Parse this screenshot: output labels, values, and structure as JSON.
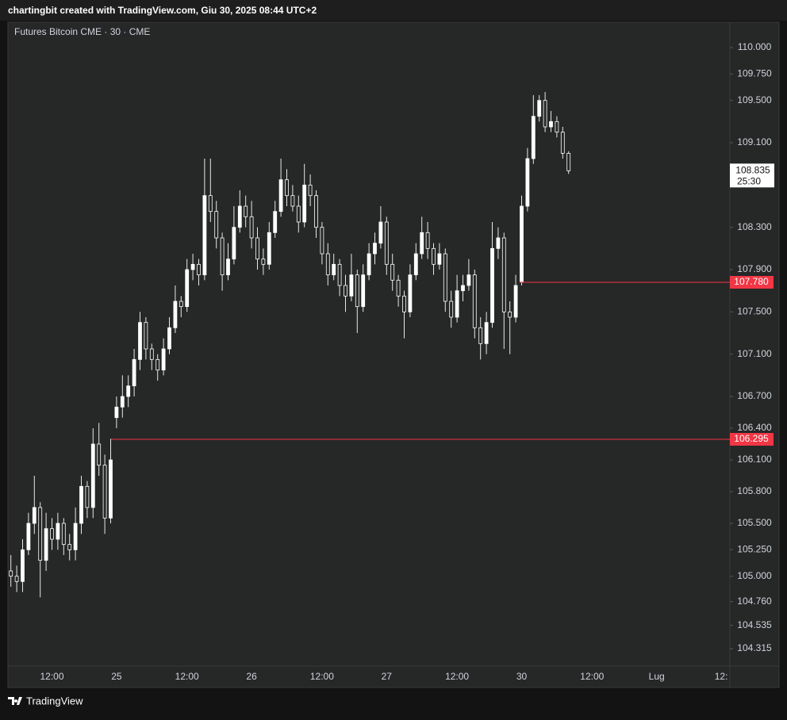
{
  "header": "chartingbit created with TradingView.com, Giu 30, 2025 08:44 UTC+2",
  "footer": "TradingView",
  "chart_data": {
    "type": "candlestick",
    "title": "Futures Bitcoin CME · 30 · CME",
    "up_color": "#ffffff",
    "down_color": "#262727",
    "wick_color": "#e8e8e8",
    "categories": [
      null,
      null,
      null,
      null,
      null,
      null,
      null,
      "12:00",
      null,
      null,
      null,
      null,
      null,
      null,
      null,
      null,
      null,
      null,
      "25",
      null,
      null,
      null,
      null,
      null,
      null,
      null,
      null,
      null,
      null,
      null,
      "12:00",
      null,
      null,
      null,
      null,
      null,
      null,
      null,
      null,
      null,
      null,
      "26",
      null,
      null,
      null,
      null,
      null,
      null,
      null,
      null,
      null,
      null,
      null,
      "12:00",
      null,
      null,
      null,
      null,
      null,
      null,
      null,
      null,
      null,
      null,
      "27",
      null,
      null,
      null,
      null,
      null,
      null,
      null,
      null,
      null,
      null,
      null,
      "12:00",
      null,
      null,
      null,
      null,
      null,
      null,
      null,
      null,
      null,
      null,
      "30",
      null,
      null,
      null,
      null,
      null,
      null,
      null,
      null,
      null,
      null,
      null,
      "12:00",
      null,
      null,
      null,
      null,
      null,
      null,
      null,
      null,
      null,
      null,
      "Lug",
      null,
      null,
      null,
      null,
      null,
      null,
      null,
      null,
      null,
      null,
      "12:"
    ],
    "open": [
      105050,
      105000,
      104950,
      105250,
      105500,
      105650,
      105150,
      105450,
      105350,
      105500,
      105300,
      105250,
      105500,
      105850,
      105650,
      106250,
      106050,
      105550,
      106500,
      106600,
      106700,
      106800,
      107050,
      107400,
      107150,
      107050,
      106950,
      107150,
      107350,
      107600,
      107550,
      107900,
      107950,
      107850,
      108600,
      108450,
      108200,
      107850,
      108000,
      108300,
      108500,
      108400,
      108200,
      108000,
      107950,
      108250,
      108450,
      108750,
      108600,
      108500,
      108350,
      108700,
      108600,
      108300,
      108050,
      107850,
      107950,
      107750,
      107650,
      107850,
      107550,
      107850,
      108050,
      108150,
      108350,
      107950,
      107800,
      107650,
      107500,
      107850,
      108050,
      108250,
      108100,
      107950,
      108050,
      107600,
      107450,
      107700,
      107750,
      107850,
      107350,
      107200,
      107400,
      108100,
      108200,
      107500,
      107450,
      107780,
      108500,
      108950,
      109350,
      109500,
      109250,
      109300,
      109200,
      109000,
      null,
      null,
      null,
      null,
      null,
      null,
      null,
      null,
      null,
      null,
      null,
      null,
      null,
      null,
      null,
      null,
      null,
      null,
      null,
      null,
      null,
      null,
      null,
      null,
      null,
      null
    ],
    "high": [
      105200,
      105100,
      105350,
      105600,
      105950,
      105700,
      105600,
      105550,
      105600,
      105550,
      105400,
      105650,
      105950,
      105900,
      106400,
      106450,
      106150,
      106300,
      106700,
      106900,
      106900,
      107150,
      107500,
      107450,
      107200,
      107100,
      107250,
      107450,
      107750,
      107650,
      108000,
      108050,
      108000,
      108950,
      108950,
      108550,
      108250,
      108150,
      108500,
      108650,
      108600,
      108550,
      108300,
      108100,
      108350,
      108550,
      108950,
      108850,
      108700,
      108600,
      108900,
      108800,
      108650,
      108350,
      108150,
      108050,
      108000,
      107850,
      108050,
      107900,
      107950,
      108150,
      108250,
      108500,
      108400,
      108050,
      107850,
      107700,
      107950,
      108150,
      108400,
      108350,
      108150,
      108150,
      108100,
      107700,
      107850,
      107850,
      108000,
      107900,
      107450,
      107500,
      108350,
      108300,
      108250,
      107600,
      107850,
      108600,
      109050,
      109550,
      109550,
      109580,
      109400,
      109350,
      109250,
      109020,
      null,
      null,
      null,
      null,
      null,
      null,
      null,
      null,
      null,
      null,
      null,
      null,
      null,
      null,
      null,
      null,
      null,
      null,
      null,
      null,
      null,
      null,
      null,
      null,
      null,
      null
    ],
    "low": [
      104900,
      104850,
      104850,
      105200,
      105400,
      104800,
      105050,
      105250,
      105250,
      105200,
      105150,
      105150,
      105400,
      105550,
      105550,
      105950,
      105400,
      105500,
      106400,
      106500,
      106600,
      106700,
      106950,
      107050,
      106950,
      106850,
      106900,
      107100,
      107300,
      107450,
      107500,
      107800,
      107750,
      107800,
      108350,
      108100,
      107700,
      107800,
      107950,
      108250,
      108300,
      108100,
      107900,
      107850,
      107900,
      108200,
      108400,
      108500,
      108450,
      108250,
      108300,
      108500,
      108200,
      107950,
      107750,
      107800,
      107650,
      107500,
      107600,
      107300,
      107500,
      107800,
      107950,
      108100,
      107850,
      107700,
      107550,
      107250,
      107450,
      107800,
      108000,
      108000,
      107850,
      107900,
      107500,
      107350,
      107400,
      107600,
      107700,
      107250,
      107050,
      107100,
      107350,
      108000,
      107150,
      107100,
      107400,
      107750,
      108450,
      108900,
      109300,
      109200,
      109200,
      109150,
      108950,
      108805,
      null,
      null,
      null,
      null,
      null,
      null,
      null,
      null,
      null,
      null,
      null,
      null,
      null,
      null,
      null,
      null,
      null,
      null,
      null,
      null,
      null,
      null,
      null,
      null,
      null,
      null
    ],
    "close": [
      105000,
      104950,
      105250,
      105500,
      105650,
      105150,
      105450,
      105350,
      105500,
      105300,
      105250,
      105500,
      105850,
      105650,
      106250,
      106050,
      105550,
      106100,
      106600,
      106700,
      106800,
      107050,
      107400,
      107150,
      107050,
      106950,
      107150,
      107350,
      107600,
      107550,
      107900,
      107950,
      107850,
      108600,
      108450,
      108200,
      107850,
      108000,
      108300,
      108500,
      108400,
      108200,
      108000,
      107950,
      108250,
      108450,
      108750,
      108600,
      108500,
      108350,
      108700,
      108600,
      108300,
      108050,
      107850,
      107950,
      107750,
      107650,
      107850,
      107550,
      107850,
      108050,
      108150,
      108350,
      107950,
      107800,
      107650,
      107500,
      107850,
      108050,
      108250,
      108100,
      107950,
      108050,
      107600,
      107450,
      107700,
      107750,
      107850,
      107350,
      107200,
      107400,
      108100,
      108200,
      107500,
      107450,
      107750,
      108500,
      108950,
      109350,
      109500,
      109250,
      109300,
      109200,
      109000,
      108835,
      null,
      null,
      null,
      null,
      null,
      null,
      null,
      null,
      null,
      null,
      null,
      null,
      null,
      null,
      null,
      null,
      null,
      null,
      null,
      null,
      null,
      null,
      null,
      null,
      null,
      null
    ],
    "ylim": [
      104150,
      110240
    ],
    "yticks": [
      {
        "value": 110000,
        "label": "110.000"
      },
      {
        "value": 109750,
        "label": "109.750"
      },
      {
        "value": 109500,
        "label": "109.500"
      },
      {
        "value": 109100,
        "label": "109.100"
      },
      {
        "value": 108300,
        "label": "108.300"
      },
      {
        "value": 107900,
        "label": "107.900"
      },
      {
        "value": 107500,
        "label": "107.500"
      },
      {
        "value": 107100,
        "label": "107.100"
      },
      {
        "value": 106700,
        "label": "106.700"
      },
      {
        "value": 106400,
        "label": "106.400"
      },
      {
        "value": 106100,
        "label": "106.100"
      },
      {
        "value": 105800,
        "label": "105.800"
      },
      {
        "value": 105500,
        "label": "105.500"
      },
      {
        "value": 105250,
        "label": "105.250"
      },
      {
        "value": 105000,
        "label": "105.000"
      },
      {
        "value": 104760,
        "label": "104.760"
      },
      {
        "value": 104535,
        "label": "104.535"
      },
      {
        "value": 104315,
        "label": "104.315"
      }
    ],
    "price_lines": [
      {
        "value": 107780,
        "label": "107.780",
        "color": "#f23645"
      },
      {
        "value": 106295,
        "label": "106.295",
        "color": "#f23645"
      }
    ],
    "last_price": {
      "value": 108835,
      "label": "108.835",
      "countdown": "25:30"
    }
  }
}
